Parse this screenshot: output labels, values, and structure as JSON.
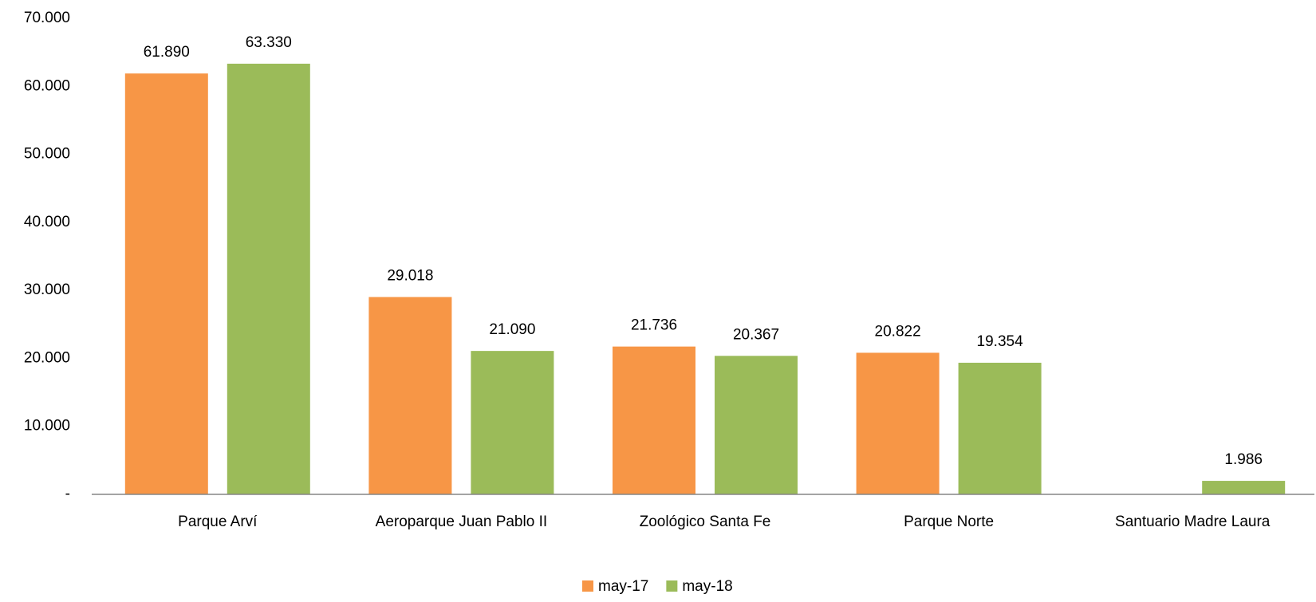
{
  "chart_data": {
    "type": "bar",
    "categories": [
      "Parque Arví",
      "Aeroparque Juan Pablo II",
      "Zoológico Santa Fe",
      "Parque Norte",
      "Santuario Madre Laura"
    ],
    "series": [
      {
        "name": "may-17",
        "color": "#f79646",
        "values": [
          61890,
          29018,
          21736,
          20822,
          null
        ],
        "value_labels": [
          "61.890",
          "29.018",
          "21.736",
          "20.822",
          null
        ]
      },
      {
        "name": "may-18",
        "color": "#9bbb59",
        "values": [
          63330,
          21090,
          20367,
          19354,
          1986
        ],
        "value_labels": [
          "63.330",
          "21.090",
          "20.367",
          "19.354",
          "1.986"
        ]
      }
    ],
    "ylim": [
      0,
      70000
    ],
    "yticks": [
      {
        "value": 0,
        "label": "-"
      },
      {
        "value": 10000,
        "label": "10.000"
      },
      {
        "value": 20000,
        "label": "20.000"
      },
      {
        "value": 30000,
        "label": "30.000"
      },
      {
        "value": 40000,
        "label": "40.000"
      },
      {
        "value": 50000,
        "label": "50.000"
      },
      {
        "value": 60000,
        "label": "60.000"
      },
      {
        "value": 70000,
        "label": "70.000"
      }
    ],
    "grid": false,
    "legend": "bottom"
  }
}
